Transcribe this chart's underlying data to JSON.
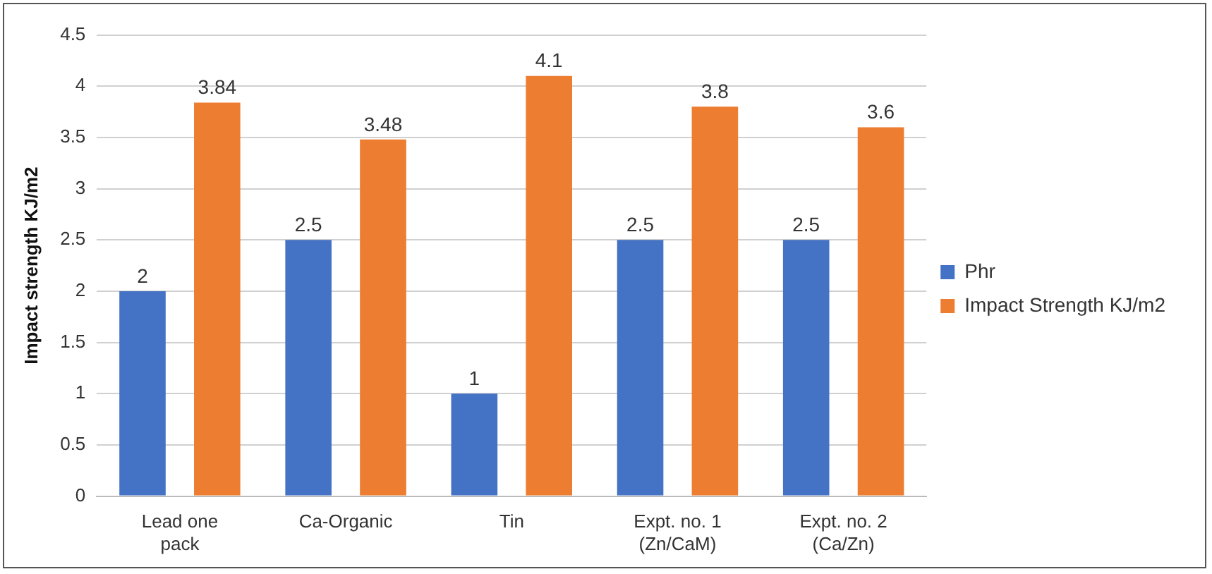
{
  "chart_data": {
    "type": "bar",
    "ylabel": "Impact strength KJ/m2",
    "categories": [
      "Lead one pack",
      "Ca-Organic",
      "Tin",
      "Expt. no. 1 (Zn/CaM)",
      "Expt. no. 2 (Ca/Zn)"
    ],
    "series": [
      {
        "name": "Phr",
        "color": "#4472c4",
        "values": [
          2,
          2.5,
          1,
          2.5,
          2.5
        ]
      },
      {
        "name": "Impact Strength KJ/m2",
        "color": "#ed7d31",
        "values": [
          3.84,
          3.48,
          4.1,
          3.8,
          3.6
        ]
      }
    ],
    "ylim": [
      0,
      4.5
    ],
    "yticks": [
      0,
      0.5,
      1,
      1.5,
      2,
      2.5,
      3,
      3.5,
      4,
      4.5
    ],
    "grid": "y",
    "legend": "right",
    "data_labels": true
  }
}
